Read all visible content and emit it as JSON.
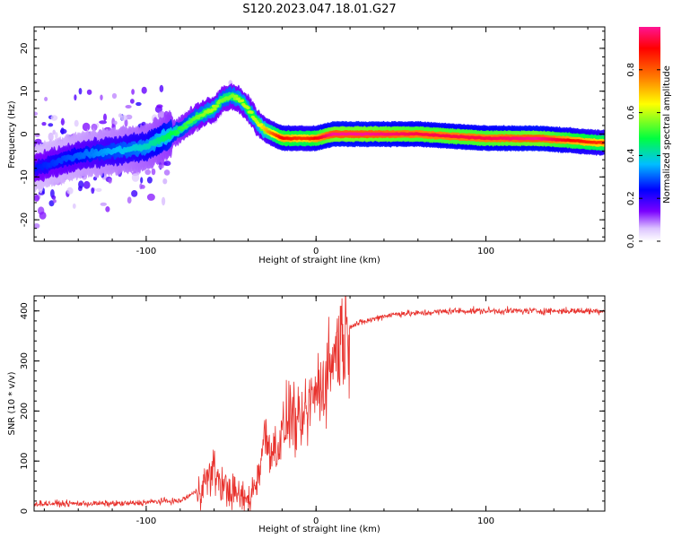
{
  "title": "S120.2023.047.18.01.G27",
  "chart_data": [
    {
      "type": "heatmap",
      "xlabel": "Height of straight line (km)",
      "ylabel": "Frequency (Hz)",
      "xlim": [
        -166,
        170
      ],
      "ylim": [
        -25,
        25
      ],
      "xticks": [
        -100,
        0,
        100
      ],
      "yticks": [
        -20,
        -10,
        0,
        10,
        20
      ],
      "colorbar": {
        "label": "Normalized spectral amplitude",
        "range": [
          0,
          1
        ],
        "ticks": [
          0.0,
          0.2,
          0.4,
          0.6,
          0.8
        ],
        "colormap": [
          "#ffffff",
          "#dcc3ff",
          "#7a00ff",
          "#0000ff",
          "#00bfff",
          "#00ff40",
          "#ffff00",
          "#ff8000",
          "#ff0000",
          "#ff1493"
        ]
      },
      "ridge": {
        "x": [
          -166,
          -140,
          -120,
          -100,
          -90,
          -80,
          -70,
          -60,
          -55,
          -50,
          -45,
          -40,
          -35,
          -30,
          -25,
          -20,
          -10,
          -5,
          0,
          10,
          30,
          60,
          100,
          130,
          150,
          165
        ],
        "y": [
          -8,
          -5,
          -4,
          -3,
          -1,
          1,
          4,
          6,
          8,
          9,
          8,
          6,
          3,
          1,
          0,
          -1,
          -1,
          -1,
          -1,
          0,
          0,
          0,
          -1,
          -1,
          -1.5,
          -2
        ],
        "amp": [
          0.25,
          0.3,
          0.35,
          0.4,
          0.45,
          0.5,
          0.55,
          0.6,
          0.55,
          0.55,
          0.6,
          0.6,
          0.6,
          0.7,
          0.8,
          0.9,
          0.85,
          0.85,
          0.9,
          1.0,
          1.0,
          0.95,
          0.95,
          1.0,
          0.9,
          0.85
        ]
      }
    },
    {
      "type": "line",
      "xlabel": "Height of straight line (km)",
      "ylabel": "SNR (10 * v/v)",
      "xlim": [
        -166,
        170
      ],
      "ylim": [
        0,
        430
      ],
      "xticks": [
        -100,
        0,
        100
      ],
      "yticks": [
        0,
        100,
        200,
        300,
        400
      ],
      "line_color": "#e8322d",
      "series": [
        {
          "x": [
            -166,
            -150,
            -130,
            -110,
            -90,
            -80,
            -70,
            -65,
            -60,
            -55,
            -50,
            -45,
            -40,
            -35,
            -30,
            -25,
            -20,
            -15,
            -10,
            -5,
            0,
            5,
            10,
            15,
            20,
            30,
            40,
            50,
            60,
            80,
            100,
            120,
            140,
            160,
            170
          ],
          "values": [
            15,
            15,
            15,
            15,
            20,
            20,
            40,
            60,
            80,
            50,
            40,
            30,
            20,
            60,
            150,
            120,
            150,
            200,
            160,
            200,
            240,
            260,
            310,
            350,
            370,
            380,
            390,
            395,
            395,
            400,
            400,
            400,
            400,
            400,
            400
          ]
        }
      ]
    }
  ]
}
